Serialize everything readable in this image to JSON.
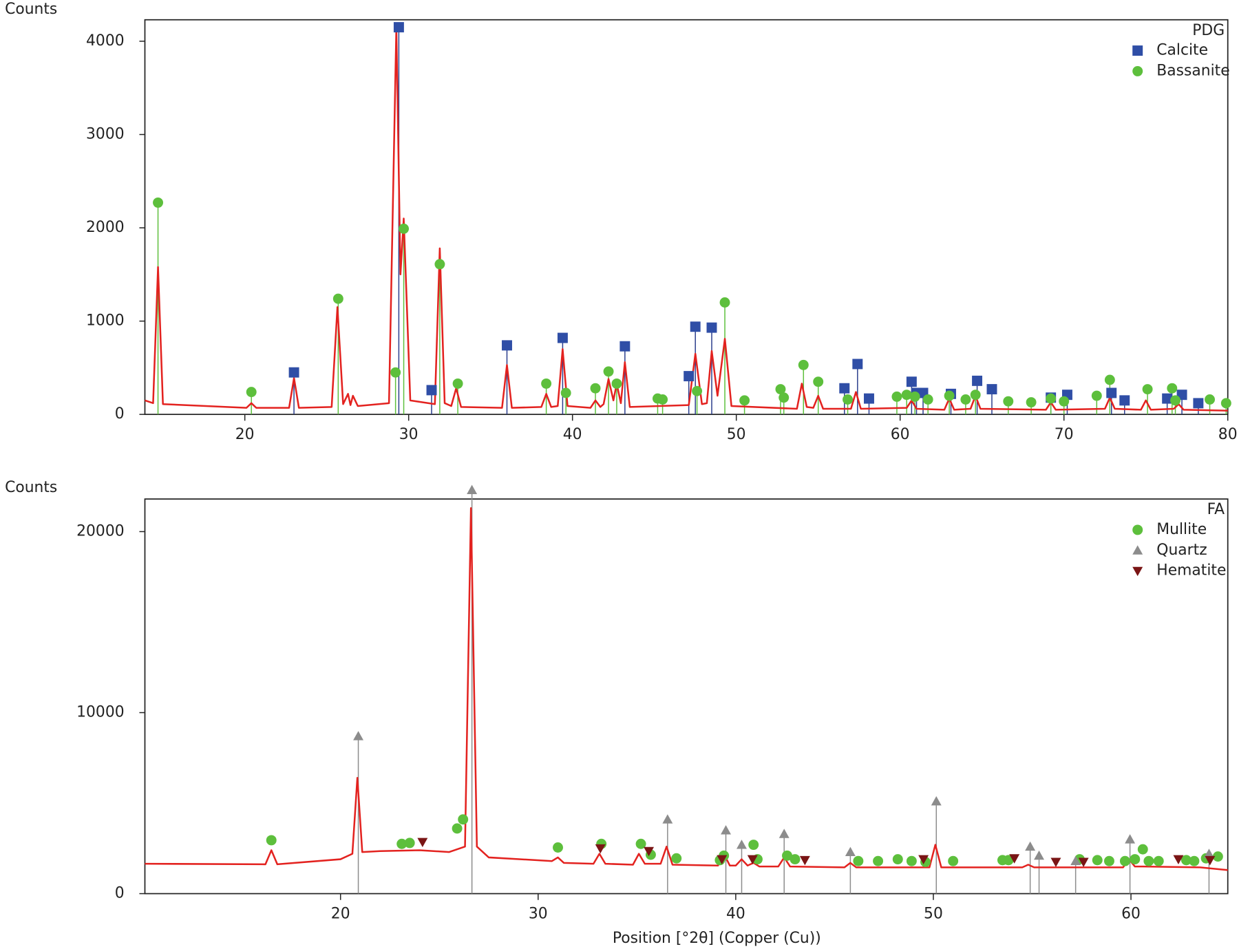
{
  "chart_data": [
    {
      "type": "line",
      "legend_title": "PDG",
      "ylabel": "Counts",
      "color": "#e3221f",
      "x": [
        13.9,
        14.4,
        14.7,
        15.0,
        20.1,
        20.4,
        20.7,
        22.7,
        23.0,
        23.3,
        25.3,
        25.65,
        26.0,
        26.3,
        26.45,
        26.6,
        26.9,
        28.8,
        29.25,
        29.5,
        29.7,
        30.1,
        31.6,
        31.9,
        32.2,
        32.6,
        32.9,
        33.2,
        35.7,
        36.0,
        36.3,
        38.1,
        38.4,
        38.7,
        39.1,
        39.4,
        39.7,
        41.1,
        41.4,
        41.7,
        41.9,
        42.2,
        42.5,
        42.7,
        42.95,
        43.2,
        43.5,
        47.1,
        47.5,
        47.9,
        48.2,
        48.5,
        48.85,
        49.3,
        49.7,
        53.7,
        54.0,
        54.3,
        54.7,
        55.0,
        55.3,
        57.0,
        57.3,
        57.6,
        60.4,
        60.7,
        61.0,
        62.7,
        63.0,
        63.3,
        64.3,
        64.6,
        64.9,
        68.9,
        69.2,
        69.5,
        72.5,
        72.8,
        73.1,
        74.7,
        75.0,
        75.3,
        76.7,
        77.0,
        77.3,
        80.0
      ],
      "values": [
        150,
        120,
        1580,
        110,
        70,
        120,
        70,
        70,
        390,
        70,
        80,
        1150,
        110,
        220,
        100,
        200,
        90,
        120,
        4150,
        1500,
        2100,
        150,
        110,
        1780,
        120,
        90,
        280,
        80,
        70,
        530,
        70,
        80,
        220,
        80,
        90,
        700,
        90,
        70,
        150,
        80,
        110,
        380,
        150,
        330,
        120,
        560,
        80,
        100,
        650,
        110,
        120,
        680,
        200,
        810,
        90,
        60,
        330,
        80,
        70,
        200,
        60,
        60,
        240,
        60,
        70,
        150,
        60,
        50,
        170,
        50,
        60,
        200,
        60,
        50,
        130,
        50,
        60,
        180,
        60,
        50,
        150,
        50,
        60,
        110,
        50,
        40
      ],
      "xlim": [
        13.9,
        80
      ],
      "ylim": [
        0,
        4230
      ],
      "xticks": [
        20,
        30,
        40,
        50,
        60,
        70,
        80
      ],
      "yticks": [
        0,
        1000,
        2000,
        3000,
        4000
      ],
      "series": [
        {
          "name": "Calcite",
          "color": "#2f4ea6",
          "stick_color": "#2a3d8c",
          "marker": "square",
          "stick": true,
          "x": [
            23.0,
            29.4,
            31.4,
            36.0,
            39.4,
            43.2,
            47.1,
            47.5,
            48.5,
            56.6,
            57.4,
            58.1,
            60.7,
            61.0,
            61.4,
            63.1,
            64.7,
            65.6,
            69.2,
            70.2,
            72.9,
            73.7,
            76.3,
            77.2,
            78.2
          ],
          "values": [
            450,
            4150,
            260,
            740,
            820,
            730,
            410,
            940,
            930,
            280,
            540,
            170,
            350,
            230,
            230,
            220,
            360,
            270,
            180,
            210,
            230,
            150,
            170,
            210,
            120
          ]
        },
        {
          "name": "Bassanite",
          "color": "#5dbf3c",
          "stick_color": "#5dbf3c",
          "marker": "circle",
          "stick": true,
          "x": [
            14.7,
            20.4,
            25.7,
            29.2,
            29.7,
            31.9,
            33.0,
            38.4,
            39.6,
            41.4,
            42.2,
            42.7,
            45.2,
            45.5,
            47.6,
            49.3,
            50.5,
            52.7,
            52.9,
            54.1,
            55.0,
            56.8,
            59.8,
            60.4,
            60.9,
            61.7,
            63.0,
            64.0,
            64.6,
            66.6,
            68.0,
            69.2,
            70.0,
            72.0,
            72.8,
            75.1,
            76.6,
            76.8,
            78.9,
            79.9
          ],
          "values": [
            2270,
            240,
            1240,
            450,
            1990,
            1610,
            330,
            330,
            230,
            280,
            460,
            330,
            170,
            160,
            250,
            1200,
            150,
            270,
            180,
            530,
            350,
            160,
            190,
            210,
            190,
            160,
            200,
            160,
            210,
            140,
            130,
            170,
            140,
            200,
            370,
            270,
            280,
            150,
            160,
            120
          ]
        }
      ]
    },
    {
      "type": "line",
      "legend_title": "FA",
      "ylabel": "Counts",
      "xlabel": "Position [°2θ] (Copper (Cu))",
      "color": "#e3221f",
      "x": [
        10.1,
        16.2,
        16.5,
        16.8,
        20.0,
        20.6,
        20.85,
        21.1,
        22,
        24,
        25.5,
        26.3,
        26.6,
        26.9,
        27.5,
        30.7,
        31.0,
        31.3,
        32.8,
        33.1,
        33.4,
        34.8,
        35.1,
        35.4,
        36.2,
        36.5,
        36.8,
        39.1,
        39.4,
        39.7,
        40.0,
        40.3,
        40.6,
        40.9,
        41.2,
        42.15,
        42.45,
        42.75,
        45.5,
        45.8,
        46.1,
        49.8,
        50.1,
        50.4,
        54.5,
        54.8,
        55.1,
        59.6,
        59.9,
        60.2,
        60.6,
        63.5,
        64.9
      ],
      "values": [
        1650,
        1620,
        2400,
        1620,
        1900,
        2200,
        6400,
        2300,
        2350,
        2400,
        2300,
        2600,
        21300,
        2600,
        2000,
        1800,
        2000,
        1700,
        1650,
        2200,
        1650,
        1600,
        2200,
        1650,
        1650,
        2600,
        1600,
        1550,
        2200,
        1550,
        1550,
        1900,
        1550,
        1700,
        1500,
        1500,
        2000,
        1500,
        1450,
        1700,
        1450,
        1450,
        2700,
        1450,
        1450,
        1600,
        1450,
        1450,
        1900,
        1500,
        1500,
        1450,
        1300
      ],
      "xlim": [
        10.1,
        64.9
      ],
      "ylim": [
        0,
        21800
      ],
      "xticks": [
        20,
        30,
        40,
        50,
        60
      ],
      "yticks": [
        0,
        10000,
        20000
      ],
      "series": [
        {
          "name": "Mullite",
          "color": "#5dbf3c",
          "stick_color": "#5dbf3c",
          "marker": "circle",
          "stick": false,
          "x": [
            16.5,
            23.1,
            23.5,
            25.9,
            26.2,
            31.0,
            33.2,
            35.2,
            35.7,
            37.0,
            39.2,
            39.4,
            40.9,
            41.1,
            42.6,
            43.0,
            46.2,
            47.2,
            48.2,
            48.9,
            49.6,
            51.0,
            53.5,
            53.8,
            57.4,
            58.3,
            58.9,
            59.7,
            60.2,
            60.6,
            60.9,
            61.4,
            62.8,
            63.2,
            63.8,
            64.4
          ],
          "values": [
            2950,
            2750,
            2800,
            3600,
            4100,
            2550,
            2750,
            2750,
            2150,
            1950,
            1850,
            2100,
            2700,
            1900,
            2100,
            1900,
            1800,
            1800,
            1900,
            1800,
            1750,
            1800,
            1850,
            1850,
            1900,
            1850,
            1800,
            1800,
            1900,
            2450,
            1800,
            1800,
            1850,
            1800,
            1950,
            2050
          ]
        },
        {
          "name": "Quartz",
          "color": "#8c8c8c",
          "stick_color": "#8c8c8c",
          "marker": "triangle",
          "stick": true,
          "x": [
            20.9,
            26.65,
            36.55,
            39.5,
            40.3,
            42.45,
            45.8,
            50.15,
            54.9,
            55.35,
            57.2,
            59.95,
            63.95
          ],
          "values": [
            8700,
            22300,
            4100,
            3500,
            2700,
            3300,
            2300,
            5100,
            2600,
            2100,
            1800,
            3000,
            2200
          ]
        },
        {
          "name": "Hematite",
          "color": "#7a1515",
          "stick_color": "#7a1515",
          "marker": "triangle-down",
          "stick": false,
          "x": [
            24.15,
            33.15,
            35.6,
            39.3,
            40.85,
            43.5,
            49.5,
            54.1,
            56.2,
            57.6,
            62.4,
            64.0
          ],
          "values": [
            2850,
            2500,
            2350,
            1900,
            1900,
            1850,
            1900,
            1950,
            1750,
            1750,
            1900,
            1850
          ]
        }
      ]
    }
  ]
}
